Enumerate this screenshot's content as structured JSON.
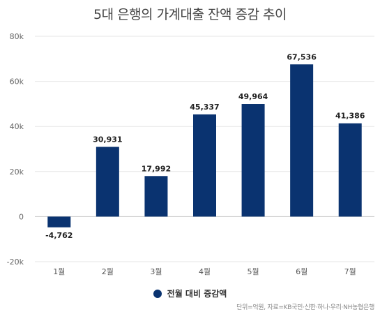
{
  "chart_data": {
    "type": "bar",
    "title": "5대 은행의 가계대출 잔액 증감 추이",
    "categories": [
      "1월",
      "2월",
      "3월",
      "4월",
      "5월",
      "6월",
      "7월"
    ],
    "series": [
      {
        "name": "전월 대비 증감액",
        "values": [
          -4762,
          30931,
          17992,
          45337,
          49964,
          67536,
          41386
        ],
        "labels": [
          "-4,762",
          "30,931",
          "17,992",
          "45,337",
          "49,964",
          "67,536",
          "41,386"
        ]
      }
    ],
    "ylim": [
      -20000,
      80000
    ],
    "yticks": [
      -20000,
      0,
      20000,
      40000,
      60000,
      80000
    ],
    "ytick_labels": [
      "-20k",
      "0",
      "20k",
      "40k",
      "60k",
      "80k"
    ],
    "xlabel": "",
    "ylabel": "",
    "grid": true,
    "legend_position": "bottom",
    "bar_color": "#0a3370",
    "source_note": "단위=억원, 자료=KB국민·신한·하나·우리·NH농협은행"
  }
}
